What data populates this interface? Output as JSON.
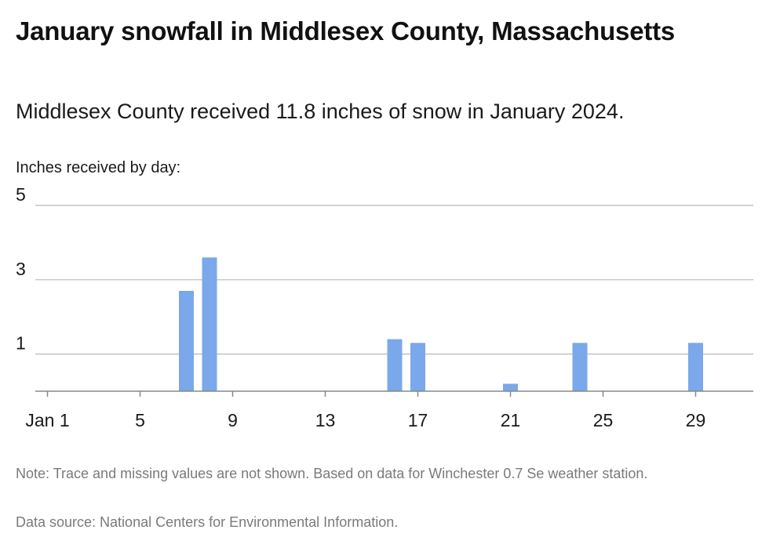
{
  "header": {
    "title": "January snowfall in Middlesex County, Massachusetts",
    "subtitle": "Middlesex County received 11.8 inches of snow in January 2024."
  },
  "footer": {
    "note": "Note: Trace and missing values are not shown. Based on data for Winchester 0.7 Se weather station.",
    "source": "Data source: National Centers for Environmental Information."
  },
  "chart_data": {
    "type": "bar",
    "title": "January snowfall in Middlesex County, Massachusetts",
    "subtitle": "Middlesex County received 11.8 inches of snow in January 2024.",
    "ylabel": "Inches received by day:",
    "xlabel": "",
    "x": [
      7,
      8,
      16,
      17,
      21,
      24,
      29
    ],
    "values": [
      2.7,
      3.6,
      1.4,
      1.3,
      0.2,
      1.3,
      1.3
    ],
    "xlim": [
      1,
      31
    ],
    "ylim": [
      0,
      5
    ],
    "x_ticks": [
      {
        "value": 1,
        "label": "Jan 1"
      },
      {
        "value": 5,
        "label": "5"
      },
      {
        "value": 9,
        "label": "9"
      },
      {
        "value": 13,
        "label": "13"
      },
      {
        "value": 17,
        "label": "17"
      },
      {
        "value": 21,
        "label": "21"
      },
      {
        "value": 25,
        "label": "25"
      },
      {
        "value": 29,
        "label": "29"
      }
    ],
    "y_ticks": [
      {
        "value": 1,
        "label": "1"
      },
      {
        "value": 3,
        "label": "3"
      },
      {
        "value": 5,
        "label": "5"
      }
    ],
    "grid": true,
    "bar_color": "#7aa8ea",
    "grid_color": "#b8b8b8",
    "axis_color": "#888888"
  }
}
